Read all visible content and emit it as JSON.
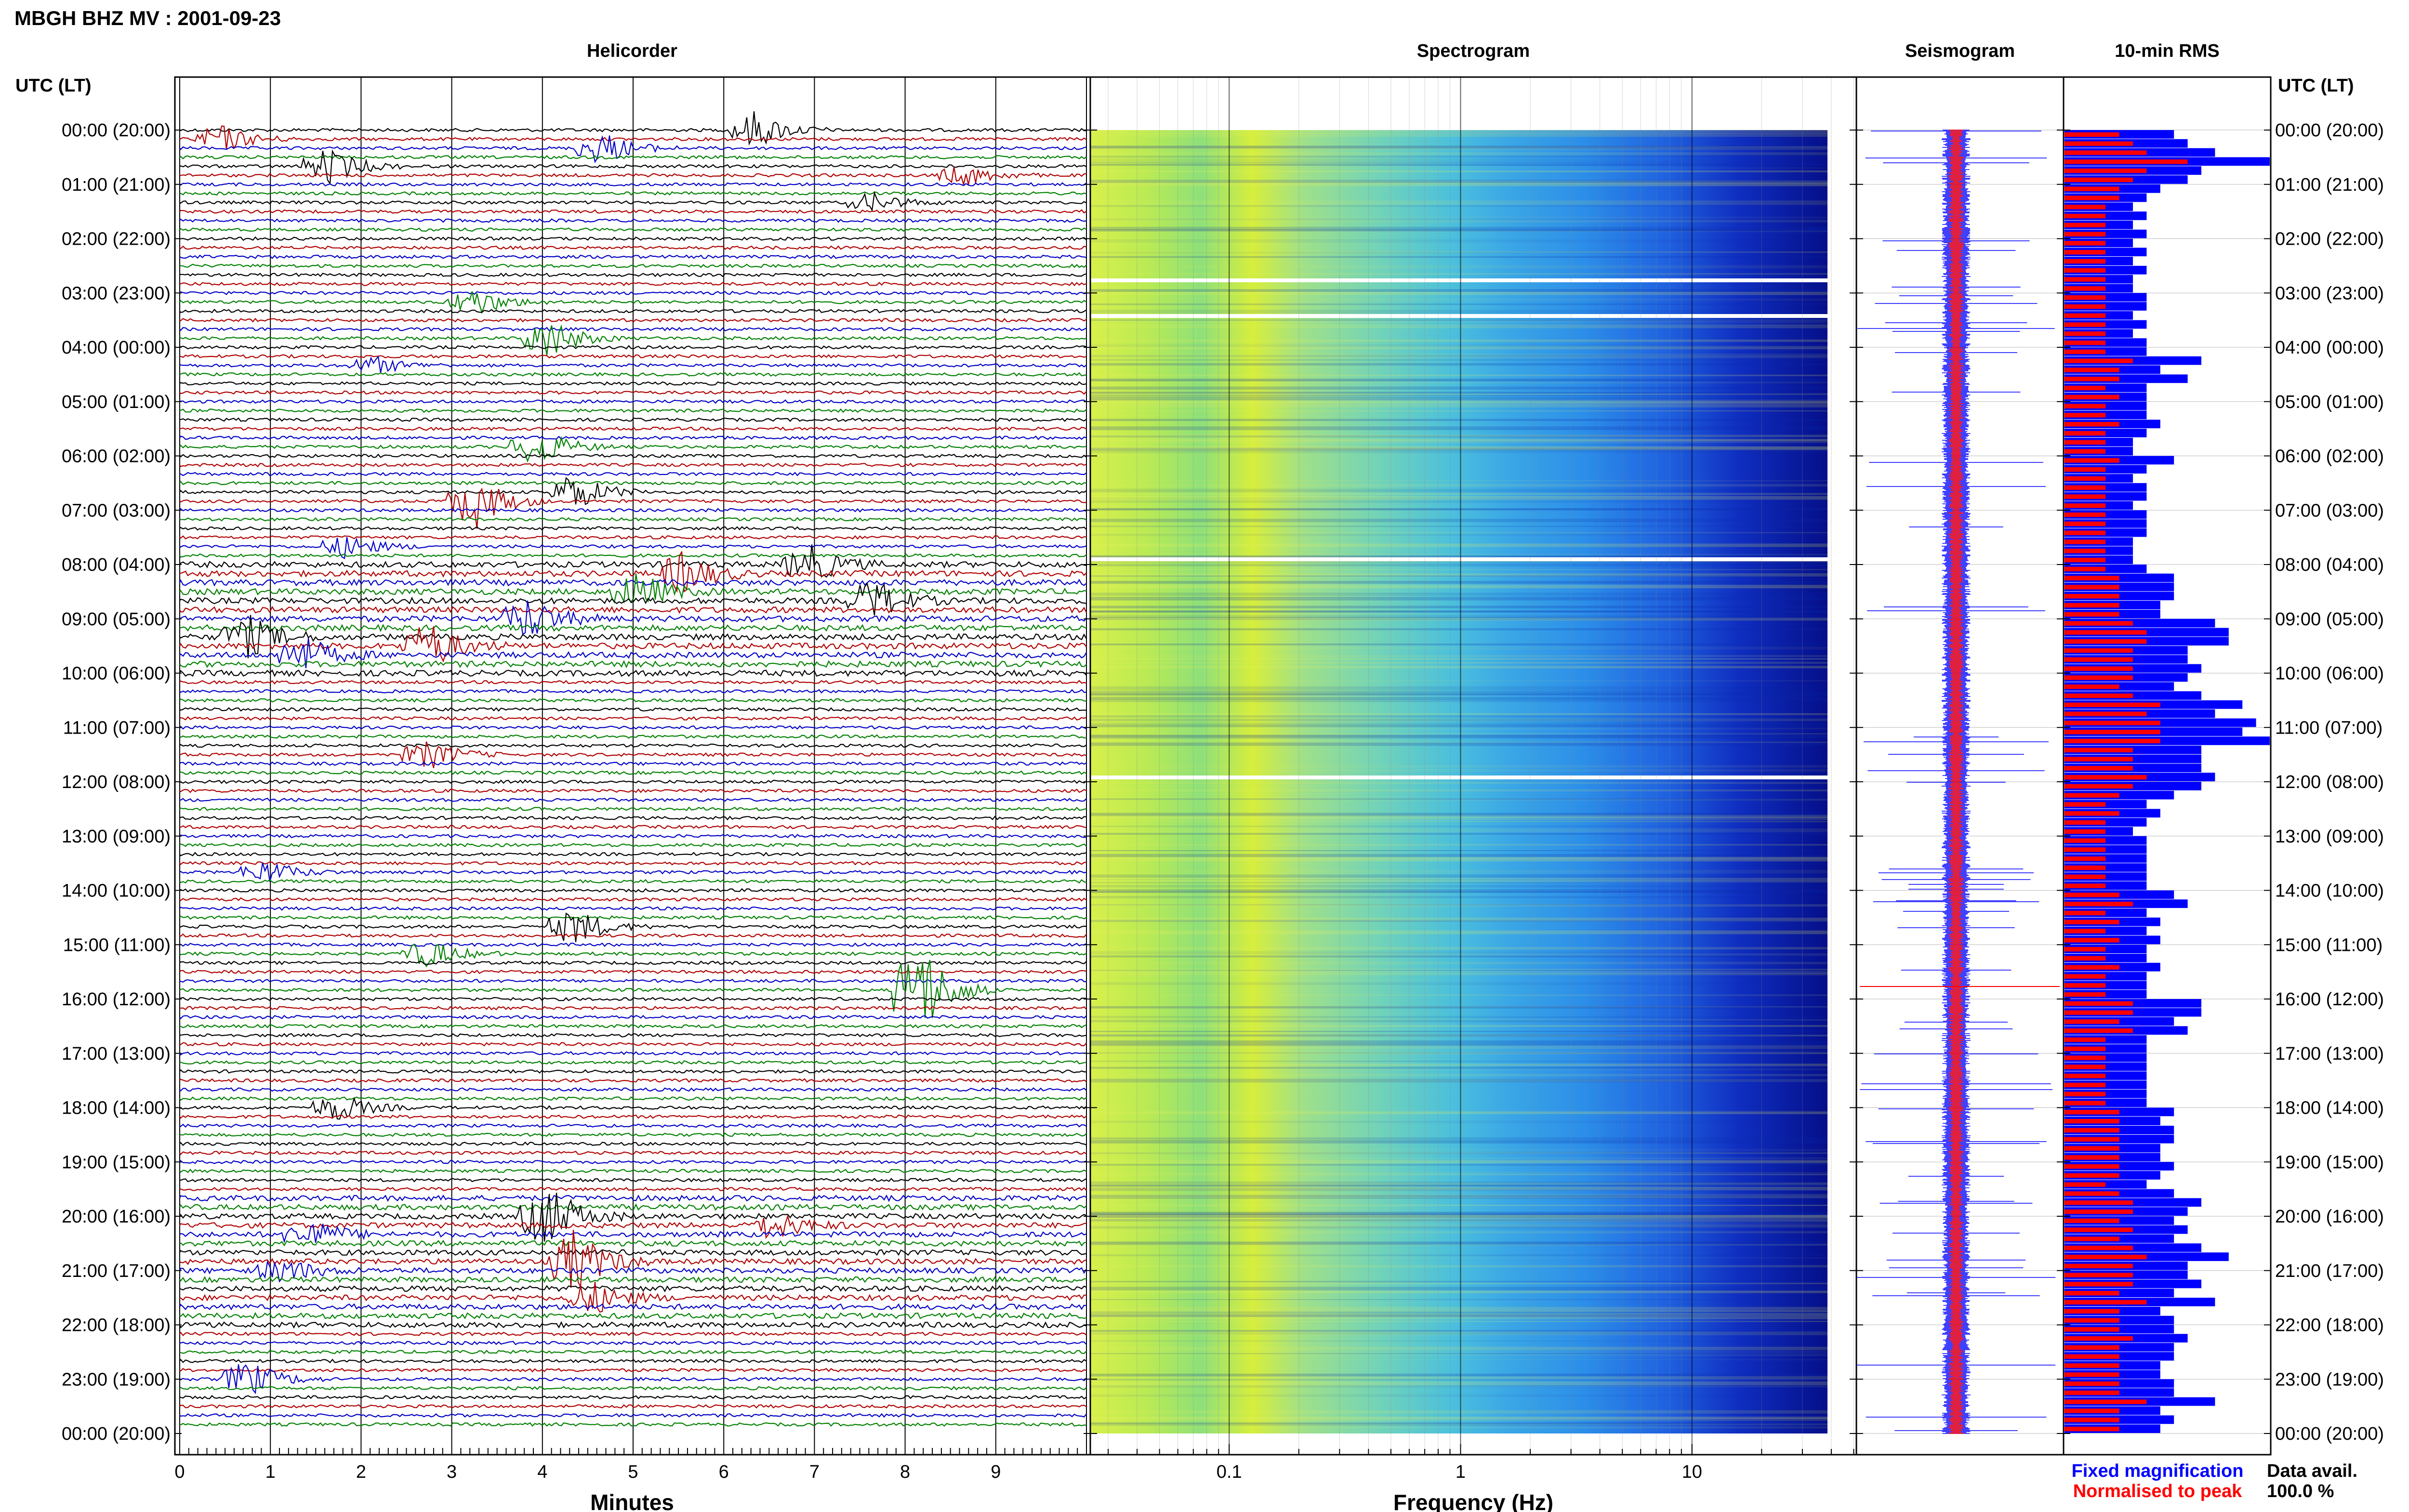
{
  "title": "MBGH BHZ MV : 2001-09-23",
  "panels": {
    "helicorder": "Helicorder",
    "spectrogram": "Spectrogram",
    "seismogram": "Seismogram",
    "rms": "10-min RMS"
  },
  "time_axis": {
    "label": "UTC (LT)",
    "ticks": [
      "00:00 (20:00)",
      "01:00 (21:00)",
      "02:00 (22:00)",
      "03:00 (23:00)",
      "04:00 (00:00)",
      "05:00 (01:00)",
      "06:00 (02:00)",
      "07:00 (03:00)",
      "08:00 (04:00)",
      "09:00 (05:00)",
      "10:00 (06:00)",
      "11:00 (07:00)",
      "12:00 (08:00)",
      "13:00 (09:00)",
      "14:00 (10:00)",
      "15:00 (11:00)",
      "16:00 (12:00)",
      "17:00 (13:00)",
      "18:00 (14:00)",
      "19:00 (15:00)",
      "20:00 (16:00)",
      "21:00 (17:00)",
      "22:00 (18:00)",
      "23:00 (19:00)",
      "00:00 (20:00)"
    ]
  },
  "helicorder_axis": {
    "label": "Minutes",
    "ticks": [
      "0",
      "1",
      "2",
      "3",
      "4",
      "5",
      "6",
      "7",
      "8",
      "9"
    ]
  },
  "frequency_axis": {
    "label": "Frequency (Hz)",
    "ticks": [
      "0.1",
      "1",
      "10"
    ],
    "scale": "log"
  },
  "legend": {
    "fixed": "Fixed magnification",
    "normalised": "Normalised to peak",
    "fixed_color": "#0000ff",
    "normalised_color": "#ff0000"
  },
  "data_avail": {
    "label": "Data avail.",
    "value": "100.0 %"
  },
  "colors": {
    "black": "#000000",
    "red": "#b00000",
    "blue": "#0000c8",
    "green": "#008000",
    "rms_fixed": "#0000ff",
    "rms_norm": "#ff0000"
  },
  "chart_data": {
    "type": "bar",
    "title": "10-min RMS",
    "ylabel": "UTC (LT)",
    "categories_note": "144 ten-minute windows from 00:00 to 24:00 UTC",
    "fixed_magnification": [
      8,
      9,
      11,
      15,
      10,
      9,
      7,
      6,
      5,
      6,
      5,
      6,
      5,
      6,
      5,
      6,
      5,
      5,
      6,
      6,
      5,
      6,
      5,
      6,
      6,
      10,
      7,
      9,
      6,
      6,
      6,
      6,
      7,
      6,
      5,
      5,
      8,
      6,
      5,
      6,
      6,
      5,
      6,
      6,
      6,
      5,
      5,
      5,
      6,
      8,
      8,
      8,
      7,
      7,
      11,
      12,
      12,
      9,
      9,
      10,
      9,
      8,
      10,
      13,
      11,
      14,
      13,
      15,
      10,
      10,
      10,
      11,
      10,
      8,
      6,
      7,
      6,
      5,
      6,
      6,
      6,
      6,
      6,
      6,
      8,
      9,
      6,
      7,
      6,
      7,
      6,
      6,
      7,
      6,
      6,
      6,
      10,
      10,
      8,
      9,
      6,
      6,
      6,
      6,
      6,
      6,
      6,
      6,
      8,
      7,
      8,
      8,
      7,
      7,
      8,
      7,
      6,
      8,
      10,
      9,
      8,
      9,
      8,
      10,
      12,
      9,
      9,
      10,
      8,
      11,
      7,
      8,
      8,
      9,
      8,
      8,
      7,
      7,
      8,
      8,
      11,
      7,
      8,
      7
    ],
    "normalised_to_peak": [
      4,
      5,
      6,
      9,
      6,
      5,
      4,
      4,
      3,
      3,
      3,
      3,
      3,
      3,
      3,
      3,
      3,
      3,
      3,
      3,
      3,
      3,
      3,
      3,
      3,
      5,
      4,
      4,
      3,
      4,
      3,
      3,
      4,
      3,
      3,
      3,
      4,
      3,
      3,
      3,
      3,
      3,
      3,
      3,
      3,
      3,
      3,
      3,
      3,
      4,
      4,
      4,
      4,
      4,
      5,
      6,
      6,
      5,
      5,
      5,
      5,
      4,
      5,
      7,
      6,
      7,
      7,
      7,
      5,
      5,
      5,
      6,
      5,
      4,
      3,
      4,
      3,
      3,
      3,
      3,
      3,
      3,
      3,
      3,
      4,
      5,
      3,
      4,
      3,
      4,
      3,
      3,
      4,
      3,
      3,
      3,
      5,
      5,
      4,
      5,
      3,
      3,
      3,
      3,
      3,
      3,
      3,
      3,
      4,
      4,
      4,
      4,
      4,
      4,
      4,
      4,
      3,
      4,
      5,
      5,
      4,
      5,
      4,
      5,
      6,
      5,
      5,
      5,
      4,
      6,
      4,
      4,
      4,
      5,
      4,
      4,
      4,
      4,
      4,
      4,
      6,
      4,
      4,
      4
    ],
    "xlim": [
      0,
      15
    ]
  }
}
